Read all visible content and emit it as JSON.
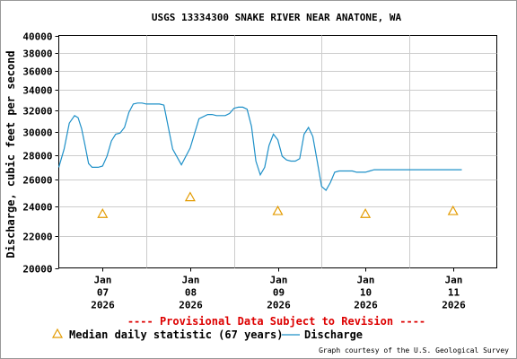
{
  "chart_data": {
    "type": "line",
    "title": "USGS 13334300 SNAKE RIVER NEAR ANATONE, WA",
    "ylabel": "Discharge, cubic feet per second",
    "xlabel": "",
    "y_scale": "log",
    "ylim": [
      20000,
      40000
    ],
    "y_ticks": [
      "20000",
      "22000",
      "24000",
      "26000",
      "28000",
      "30000",
      "32000",
      "34000",
      "36000",
      "38000",
      "40000"
    ],
    "xlim": [
      6.5,
      11.5
    ],
    "x_ticks": [
      {
        "day": 7,
        "lines": [
          "Jan",
          "07",
          "2026"
        ]
      },
      {
        "day": 8,
        "lines": [
          "Jan",
          "08",
          "2026"
        ]
      },
      {
        "day": 9,
        "lines": [
          "Jan",
          "09",
          "2026"
        ]
      },
      {
        "day": 10,
        "lines": [
          "Jan",
          "10",
          "2026"
        ]
      },
      {
        "day": 11,
        "lines": [
          "Jan",
          "11",
          "2026"
        ]
      }
    ],
    "grid": true,
    "series": [
      {
        "name": "Discharge",
        "color": "#1e90c8",
        "x": [
          6.5,
          6.56,
          6.62,
          6.68,
          6.72,
          6.76,
          6.8,
          6.84,
          6.88,
          6.92,
          6.95,
          7.0,
          7.05,
          7.1,
          7.15,
          7.2,
          7.25,
          7.3,
          7.35,
          7.4,
          7.45,
          7.5,
          7.55,
          7.6,
          7.65,
          7.7,
          7.8,
          7.9,
          8.0,
          8.1,
          8.2,
          8.25,
          8.3,
          8.35,
          8.4,
          8.45,
          8.5,
          8.55,
          8.6,
          8.65,
          8.7,
          8.75,
          8.8,
          8.85,
          8.9,
          8.95,
          9.0,
          9.05,
          9.1,
          9.15,
          9.2,
          9.25,
          9.3,
          9.35,
          9.4,
          9.45,
          9.5,
          9.55,
          9.6,
          9.65,
          9.7,
          9.75,
          9.8,
          9.85,
          9.9,
          9.95,
          10.0,
          10.05,
          10.1,
          10.15,
          10.2,
          10.25,
          10.3,
          10.35,
          10.4,
          10.45,
          10.5,
          10.55,
          10.6,
          10.65,
          10.7,
          10.75,
          10.8,
          10.85,
          10.9,
          10.95,
          11.0,
          11.05,
          11.1
        ],
        "y": [
          27000,
          28500,
          30800,
          31500,
          31300,
          30300,
          28800,
          27300,
          27000,
          27000,
          27000,
          27100,
          27900,
          29200,
          29800,
          29900,
          30400,
          31800,
          32600,
          32700,
          32700,
          32600,
          32600,
          32600,
          32600,
          32500,
          28500,
          27200,
          28600,
          31200,
          31600,
          31600,
          31500,
          31500,
          31500,
          31700,
          32200,
          32300,
          32300,
          32100,
          30500,
          27500,
          26400,
          27000,
          28800,
          29800,
          29300,
          27900,
          27600,
          27500,
          27500,
          27700,
          29800,
          30400,
          29600,
          27500,
          25500,
          25200,
          25800,
          26600,
          26700,
          26700,
          26700,
          26700,
          26600,
          26600,
          26600,
          26700,
          26800,
          26800,
          26800,
          26800,
          26800,
          26800,
          26800,
          26800,
          26800,
          26800,
          26800,
          26800,
          26800,
          26800,
          26800,
          26800,
          26800,
          26800,
          26800,
          26800,
          26800
        ]
      },
      {
        "name": "Median daily statistic (67 years)",
        "color": "#e39b00",
        "marker": "triangle",
        "x": [
          7.0,
          8.0,
          9.0,
          10.0,
          11.0
        ],
        "y": [
          23500,
          24700,
          23700,
          23500,
          23700
        ]
      }
    ],
    "legend": {
      "placement": "bottom",
      "items": [
        {
          "label": "Median daily statistic (67 years)",
          "symbol": "triangle",
          "color": "#e39b00"
        },
        {
          "label": "Discharge",
          "symbol": "line",
          "color": "#1e90c8"
        }
      ]
    },
    "provisional_note": "---- Provisional Data Subject to Revision ----",
    "credit": "Graph courtesy of the U.S. Geological Survey"
  }
}
